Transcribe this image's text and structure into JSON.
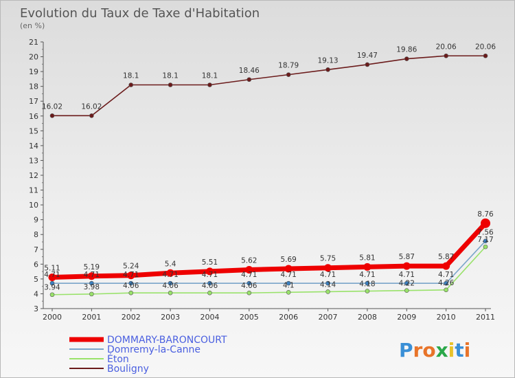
{
  "chart_data": {
    "type": "line",
    "title": "Evolution du Taux de Taxe d'Habitation",
    "subtitle": "(en %)",
    "ylim": [
      3,
      21
    ],
    "x": [
      "2000",
      "2001",
      "2002",
      "2003",
      "2004",
      "2005",
      "2006",
      "2007",
      "2008",
      "2009",
      "2010",
      "2011"
    ],
    "yticks": [
      "3",
      "4",
      "5",
      "6",
      "7",
      "8",
      "9",
      "10",
      "11",
      "12",
      "13",
      "14",
      "15",
      "16",
      "17",
      "18",
      "19",
      "20",
      "21"
    ],
    "series": [
      {
        "name": "Bouligny",
        "color": "#6b1b1b",
        "values": [
          16.02,
          16.02,
          18.1,
          18.1,
          18.1,
          18.46,
          18.79,
          19.13,
          19.47,
          19.86,
          20.06,
          20.06
        ],
        "labels": [
          "16.02",
          "16.02",
          "18.1",
          "18.1",
          "18.1",
          "18.46",
          "18.79",
          "19.13",
          "19.47",
          "19.86",
          "20.06",
          "20.06"
        ]
      },
      {
        "name": "Éton",
        "color": "#99e26a",
        "values": [
          3.94,
          3.98,
          4.06,
          4.06,
          4.06,
          4.06,
          4.1,
          4.14,
          4.18,
          4.22,
          4.26,
          7.17
        ],
        "labels": [
          "3.94",
          "3.98",
          "4.06",
          "4.06",
          "4.06",
          "4.06",
          "4.1",
          "4.14",
          "4.18",
          "4.22",
          "4.26",
          "7.17"
        ]
      },
      {
        "name": "Domremy-la-Canne",
        "color": "#7aa5c9",
        "values": [
          4.71,
          4.71,
          4.71,
          4.71,
          4.71,
          4.71,
          4.71,
          4.71,
          4.71,
          4.71,
          4.71,
          7.56
        ],
        "labels": [
          "4.71",
          "4.71",
          "4.71",
          "4.71",
          "4.71",
          "4.71",
          "4.71",
          "4.71",
          "4.71",
          "4.71",
          "4.71",
          "7.56"
        ]
      },
      {
        "name": "DOMMARY-BARONCOURT",
        "color": "#ee0000",
        "values": [
          5.11,
          5.19,
          5.24,
          5.4,
          5.51,
          5.62,
          5.69,
          5.75,
          5.81,
          5.87,
          5.87,
          8.76
        ],
        "labels": [
          "5.11",
          "5.19",
          "5.24",
          "5.4",
          "5.51",
          "5.62",
          "5.69",
          "5.75",
          "5.81",
          "5.87",
          "5.87",
          "8.76"
        ]
      }
    ],
    "legend": [
      {
        "name": "DOMMARY-BARONCOURT",
        "color": "#ee0000"
      },
      {
        "name": "Domremy-la-Canne",
        "color": "#7aa5c9"
      },
      {
        "name": "Éton",
        "color": "#99e26a"
      },
      {
        "name": "Bouligny",
        "color": "#6b1b1b"
      }
    ],
    "legend_position": "bottom-left",
    "grid": false
  },
  "branding": {
    "logo_text": "Proxiti",
    "logo_colors": [
      "#3a8fd6",
      "#e8742a",
      "#e8742a",
      "#2aa84a",
      "#e8c22a",
      "#3a8fd6",
      "#e8742a"
    ]
  }
}
